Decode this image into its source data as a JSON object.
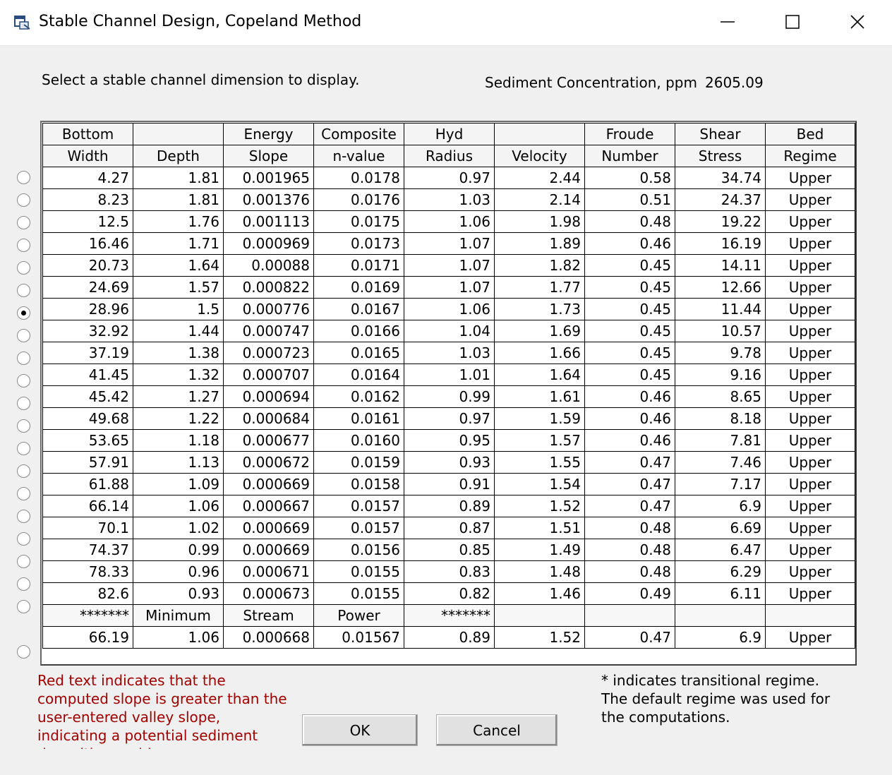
{
  "window": {
    "title": "Stable Channel Design, Copeland Method",
    "min_icon": "minimize-icon",
    "max_icon": "maximize-icon",
    "close_icon": "close-icon"
  },
  "prompt": "Select a stable channel dimension to display.",
  "sediment": {
    "label": "Sediment Concentration, ppm",
    "value": "2605.09"
  },
  "headers": {
    "row1": [
      "Bottom",
      "",
      "Energy",
      "Composite",
      "Hyd",
      "",
      "Froude",
      "Shear",
      "Bed"
    ],
    "row2": [
      "Width",
      "Depth",
      "Slope",
      "n-value",
      "Radius",
      "Velocity",
      "Number",
      "Stress",
      "Regime"
    ]
  },
  "selected_row": 6,
  "rows": [
    [
      "4.27",
      "1.81",
      "0.001965",
      "0.0178",
      "0.97",
      "2.44",
      "0.58",
      "34.74",
      "Upper"
    ],
    [
      "8.23",
      "1.81",
      "0.001376",
      "0.0176",
      "1.03",
      "2.14",
      "0.51",
      "24.37",
      "Upper"
    ],
    [
      "12.5",
      "1.76",
      "0.001113",
      "0.0175",
      "1.06",
      "1.98",
      "0.48",
      "19.22",
      "Upper"
    ],
    [
      "16.46",
      "1.71",
      "0.000969",
      "0.0173",
      "1.07",
      "1.89",
      "0.46",
      "16.19",
      "Upper"
    ],
    [
      "20.73",
      "1.64",
      "0.00088",
      "0.0171",
      "1.07",
      "1.82",
      "0.45",
      "14.11",
      "Upper"
    ],
    [
      "24.69",
      "1.57",
      "0.000822",
      "0.0169",
      "1.07",
      "1.77",
      "0.45",
      "12.66",
      "Upper"
    ],
    [
      "28.96",
      "1.5",
      "0.000776",
      "0.0167",
      "1.06",
      "1.73",
      "0.45",
      "11.44",
      "Upper"
    ],
    [
      "32.92",
      "1.44",
      "0.000747",
      "0.0166",
      "1.04",
      "1.69",
      "0.45",
      "10.57",
      "Upper"
    ],
    [
      "37.19",
      "1.38",
      "0.000723",
      "0.0165",
      "1.03",
      "1.66",
      "0.45",
      "9.78",
      "Upper"
    ],
    [
      "41.45",
      "1.32",
      "0.000707",
      "0.0164",
      "1.01",
      "1.64",
      "0.45",
      "9.16",
      "Upper"
    ],
    [
      "45.42",
      "1.27",
      "0.000694",
      "0.0162",
      "0.99",
      "1.61",
      "0.46",
      "8.65",
      "Upper"
    ],
    [
      "49.68",
      "1.22",
      "0.000684",
      "0.0161",
      "0.97",
      "1.59",
      "0.46",
      "8.18",
      "Upper"
    ],
    [
      "53.65",
      "1.18",
      "0.000677",
      "0.0160",
      "0.95",
      "1.57",
      "0.46",
      "7.81",
      "Upper"
    ],
    [
      "57.91",
      "1.13",
      "0.000672",
      "0.0159",
      "0.93",
      "1.55",
      "0.47",
      "7.46",
      "Upper"
    ],
    [
      "61.88",
      "1.09",
      "0.000669",
      "0.0158",
      "0.91",
      "1.54",
      "0.47",
      "7.17",
      "Upper"
    ],
    [
      "66.14",
      "1.06",
      "0.000667",
      "0.0157",
      "0.89",
      "1.52",
      "0.47",
      "6.9",
      "Upper"
    ],
    [
      "70.1",
      "1.02",
      "0.000669",
      "0.0157",
      "0.87",
      "1.51",
      "0.48",
      "6.69",
      "Upper"
    ],
    [
      "74.37",
      "0.99",
      "0.000669",
      "0.0156",
      "0.85",
      "1.49",
      "0.48",
      "6.47",
      "Upper"
    ],
    [
      "78.33",
      "0.96",
      "0.000671",
      "0.0155",
      "0.83",
      "1.48",
      "0.48",
      "6.29",
      "Upper"
    ],
    [
      "82.6",
      "0.93",
      "0.000673",
      "0.0155",
      "0.82",
      "1.46",
      "0.49",
      "6.11",
      "Upper"
    ]
  ],
  "min_stream_power_label": [
    "*******",
    "Minimum",
    "Stream",
    "Power",
    "*******",
    "",
    "",
    "",
    ""
  ],
  "min_stream_power_row": [
    "66.19",
    "1.06",
    "0.000668",
    "0.01567",
    "0.89",
    "1.52",
    "0.47",
    "6.9",
    "Upper"
  ],
  "note_red": "Red text indicates that the computed slope is greater than the user-entered valley slope, indicating a potential sediment deposition problem.",
  "note_right": "* indicates transitional regime. The default regime was used for the computations.",
  "buttons": {
    "ok": "OK",
    "cancel": "Cancel"
  }
}
